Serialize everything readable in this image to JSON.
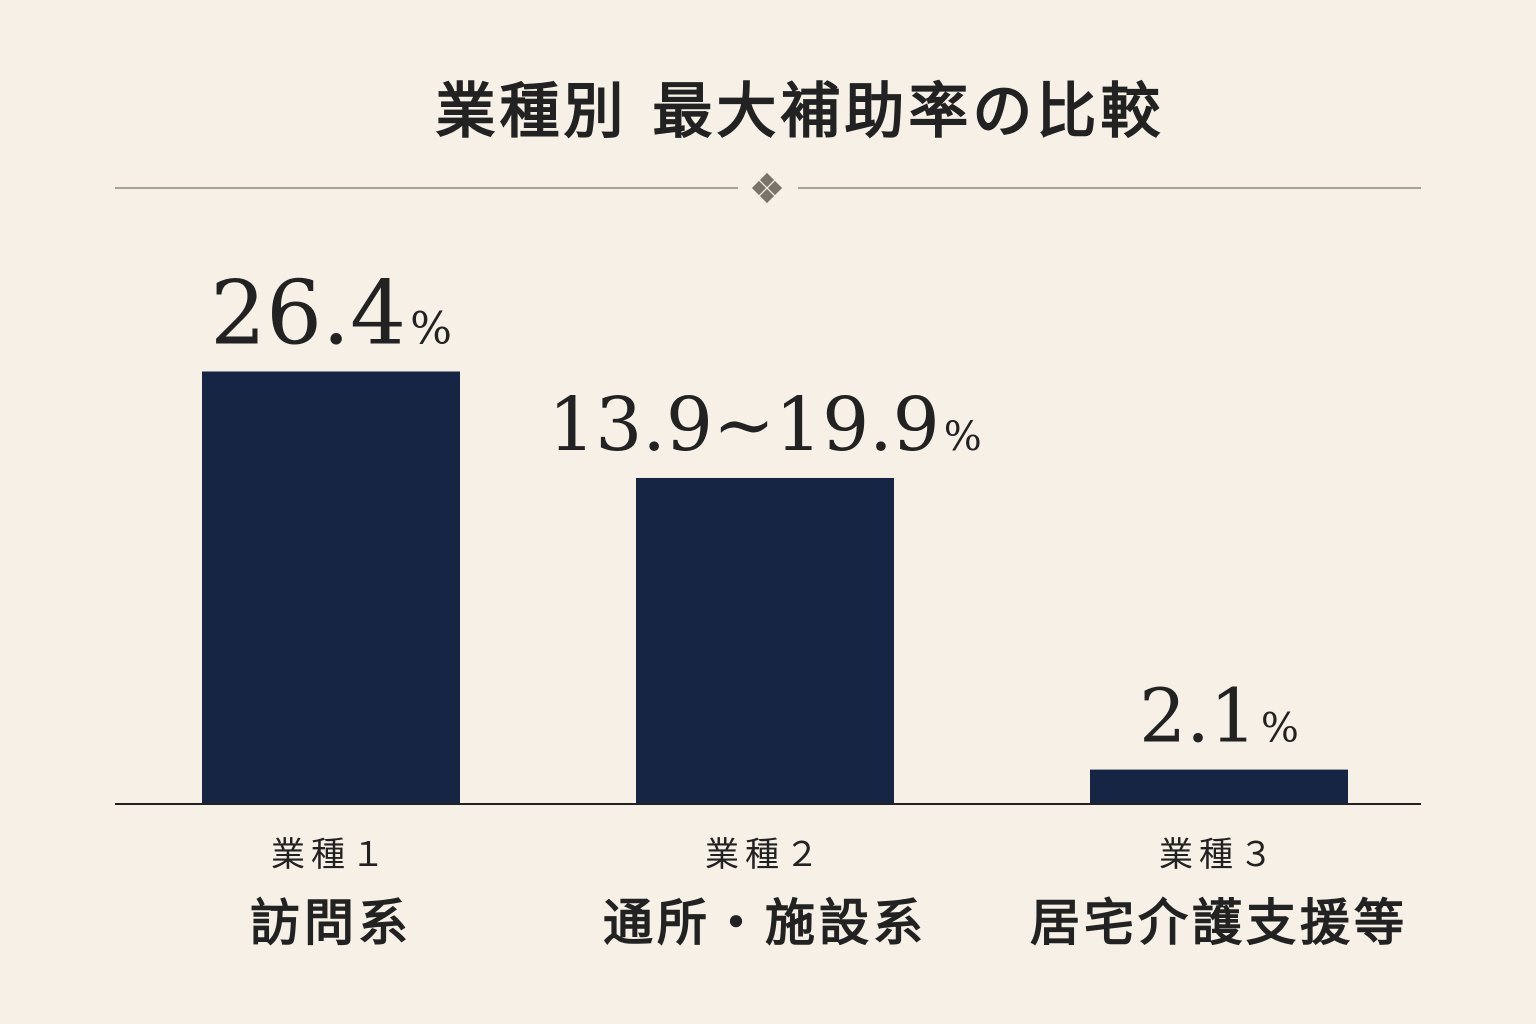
{
  "chart_data": {
    "type": "bar",
    "title": "業種別 最大補助率の比較",
    "xlabel": "",
    "ylabel": "",
    "ylim": [
      0,
      30
    ],
    "grid": false,
    "legend": "none",
    "categories": [
      {
        "code": "業種１",
        "name": "訪問系"
      },
      {
        "code": "業種２",
        "name": "通所・施設系"
      },
      {
        "code": "業種３",
        "name": "居宅介護支援等"
      }
    ],
    "series": [
      {
        "values": [
          26.4,
          19.9,
          2.1
        ],
        "labels": [
          {
            "number": "26.4",
            "unit": "%"
          },
          {
            "number": "13.9~19.9",
            "unit": "%"
          },
          {
            "number": "2.1",
            "unit": "%"
          }
        ]
      }
    ]
  },
  "colors": {
    "background": "#f6f0e7",
    "bar": "#162544",
    "text": "#222222",
    "rule": "#8a8a80",
    "ornament": "#7a7468"
  }
}
